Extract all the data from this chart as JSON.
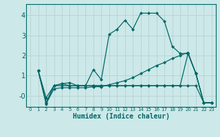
{
  "xlabel": "Humidex (Indice chaleur)",
  "bg_color": "#cce8e8",
  "line_color": "#006666",
  "grid_color": "#b8d4d4",
  "xlim": [
    -0.5,
    23.5
  ],
  "ylim": [
    -0.55,
    4.55
  ],
  "xticks": [
    0,
    1,
    2,
    3,
    4,
    5,
    6,
    7,
    8,
    9,
    10,
    11,
    12,
    13,
    14,
    15,
    16,
    17,
    18,
    19,
    20,
    21,
    22,
    23
  ],
  "yticks": [
    0,
    1,
    2,
    3,
    4
  ],
  "ytick_labels": [
    "-0",
    "1",
    "2",
    "3",
    "4"
  ],
  "series": [
    {
      "x": [
        1,
        2,
        3,
        4,
        5,
        6,
        7,
        8,
        9,
        10,
        11,
        12,
        13,
        14,
        15,
        16,
        17,
        18,
        19,
        20,
        21,
        22,
        23
      ],
      "y": [
        1.25,
        -0.1,
        0.5,
        0.6,
        0.65,
        0.5,
        0.5,
        1.3,
        0.8,
        3.05,
        3.3,
        3.75,
        3.3,
        4.1,
        4.1,
        4.1,
        3.7,
        2.45,
        2.1,
        2.1,
        1.1,
        -0.35,
        -0.35
      ]
    },
    {
      "x": [
        1,
        2,
        3,
        4,
        5,
        6,
        7,
        8,
        9,
        10,
        11,
        12,
        13,
        14,
        15,
        16,
        17,
        18,
        19,
        20,
        21,
        22,
        23
      ],
      "y": [
        1.25,
        -0.35,
        0.5,
        0.6,
        0.5,
        0.5,
        0.5,
        0.5,
        0.5,
        0.5,
        0.5,
        0.5,
        0.5,
        0.5,
        0.5,
        0.5,
        0.5,
        0.5,
        0.5,
        2.1,
        1.1,
        -0.35,
        -0.35
      ]
    },
    {
      "x": [
        1,
        2,
        3,
        4,
        5,
        6,
        7,
        8,
        9,
        10,
        11,
        12,
        13,
        14,
        15,
        16,
        17,
        18,
        19,
        20,
        21,
        22,
        23
      ],
      "y": [
        1.25,
        -0.35,
        0.5,
        0.5,
        0.5,
        0.5,
        0.5,
        0.5,
        0.5,
        0.5,
        0.5,
        0.5,
        0.5,
        0.5,
        0.5,
        0.5,
        0.5,
        0.5,
        0.5,
        0.5,
        0.5,
        -0.35,
        -0.35
      ]
    },
    {
      "x": [
        1,
        2,
        3,
        4,
        5,
        6,
        7,
        8,
        9,
        10,
        11,
        12,
        13,
        14,
        15,
        16,
        17,
        18,
        19,
        20,
        21,
        22,
        23
      ],
      "y": [
        1.25,
        -0.4,
        0.35,
        0.4,
        0.4,
        0.4,
        0.4,
        0.45,
        0.45,
        0.55,
        0.65,
        0.75,
        0.9,
        1.1,
        1.3,
        1.5,
        1.65,
        1.85,
        2.0,
        2.15,
        1.1,
        -0.35,
        -0.35
      ]
    }
  ]
}
